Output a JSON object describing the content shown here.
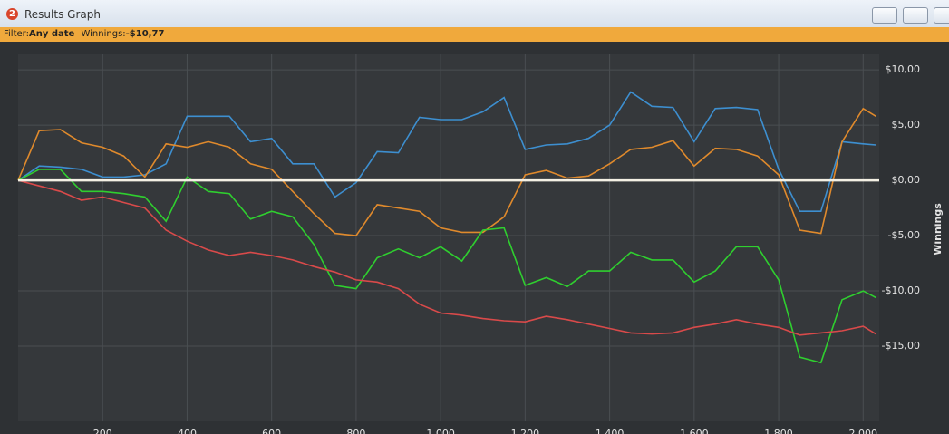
{
  "window": {
    "icon": "2",
    "title": "Results Graph"
  },
  "filter_bar": {
    "filter_label": "Filter:",
    "filter_value": "Any date",
    "winnings_label": "Winnings:",
    "winnings_value": "-$10,77"
  },
  "chart_data": {
    "type": "line",
    "y_label": "Winnings",
    "x": [
      0,
      50,
      100,
      150,
      200,
      250,
      300,
      350,
      400,
      450,
      500,
      550,
      600,
      650,
      700,
      750,
      800,
      850,
      900,
      950,
      1000,
      1050,
      1100,
      1150,
      1200,
      1250,
      1300,
      1350,
      1400,
      1450,
      1500,
      1550,
      1600,
      1650,
      1700,
      1750,
      1800,
      1850,
      1900,
      1950,
      2000,
      2030
    ],
    "series": [
      {
        "color": "#3d8fd0",
        "values": [
          0,
          1.3,
          1.2,
          1.0,
          0.3,
          0.3,
          0.5,
          1.5,
          5.8,
          5.8,
          5.8,
          3.5,
          3.8,
          1.5,
          1.5,
          -1.5,
          -0.2,
          2.6,
          2.5,
          5.7,
          5.5,
          5.5,
          6.2,
          7.5,
          2.8,
          3.2,
          3.3,
          3.8,
          5.0,
          8.0,
          6.7,
          6.6,
          3.5,
          6.5,
          6.6,
          6.4,
          1.0,
          -2.8,
          -2.8,
          3.5,
          3.3,
          3.2
        ]
      },
      {
        "color": "#e08a2c",
        "values": [
          0,
          4.5,
          4.6,
          3.4,
          3.0,
          2.2,
          0.3,
          3.3,
          3.0,
          3.5,
          3.0,
          1.5,
          1.0,
          -1.0,
          -3.0,
          -4.8,
          -5.0,
          -2.2,
          -2.5,
          -2.8,
          -4.3,
          -4.7,
          -4.7,
          -3.3,
          0.5,
          0.9,
          0.2,
          0.4,
          1.5,
          2.8,
          3.0,
          3.6,
          1.3,
          2.9,
          2.8,
          2.2,
          0.5,
          -4.5,
          -4.8,
          3.5,
          6.5,
          5.8
        ]
      },
      {
        "color": "#2fcf2f",
        "values": [
          0,
          1.0,
          1.0,
          -1.0,
          -1.0,
          -1.2,
          -1.5,
          -3.7,
          0.3,
          -1.0,
          -1.2,
          -3.5,
          -2.8,
          -3.3,
          -5.8,
          -9.5,
          -9.8,
          -7.0,
          -6.2,
          -7.0,
          -6.0,
          -7.3,
          -4.5,
          -4.3,
          -9.5,
          -8.8,
          -9.6,
          -8.2,
          -8.2,
          -6.5,
          -7.2,
          -7.2,
          -9.2,
          -8.2,
          -6.0,
          -6.0,
          -9.0,
          -16.0,
          -16.5,
          -10.8,
          -10.0,
          -10.6
        ]
      },
      {
        "color": "#d94a4a",
        "values": [
          0,
          -0.5,
          -1.0,
          -1.8,
          -1.5,
          -2.0,
          -2.5,
          -4.5,
          -5.5,
          -6.3,
          -6.8,
          -6.5,
          -6.8,
          -7.2,
          -7.8,
          -8.3,
          -9.0,
          -9.2,
          -9.8,
          -11.2,
          -12.0,
          -12.2,
          -12.5,
          -12.7,
          -12.8,
          -12.3,
          -12.6,
          -13.0,
          -13.4,
          -13.8,
          -13.9,
          -13.8,
          -13.3,
          -13.0,
          -12.6,
          -13.0,
          -13.3,
          -14.0,
          -13.8,
          -13.6,
          -13.2,
          -13.9
        ]
      }
    ],
    "xlim": [
      0,
      2038
    ],
    "xticks": [
      200,
      400,
      600,
      800,
      {
        "value": 1000,
        "label": "1 000"
      },
      {
        "value": 1200,
        "label": "1 200"
      },
      {
        "value": 1400,
        "label": "1 400"
      },
      {
        "value": 1600,
        "label": "1 600"
      },
      {
        "value": 1800,
        "label": "1 800"
      },
      {
        "value": 2000,
        "label": "2 000"
      }
    ],
    "ylim": [
      -21.8,
      11.4
    ],
    "yticks": [
      {
        "value": 10,
        "label": "$10,00"
      },
      {
        "value": 5,
        "label": "$5,00"
      },
      {
        "value": 0,
        "label": "$0,00"
      },
      {
        "value": -5,
        "label": "-$5,00"
      },
      {
        "value": -10,
        "label": "-$10,00"
      },
      {
        "value": -15,
        "label": "-$15,00"
      }
    ],
    "grid": true
  }
}
